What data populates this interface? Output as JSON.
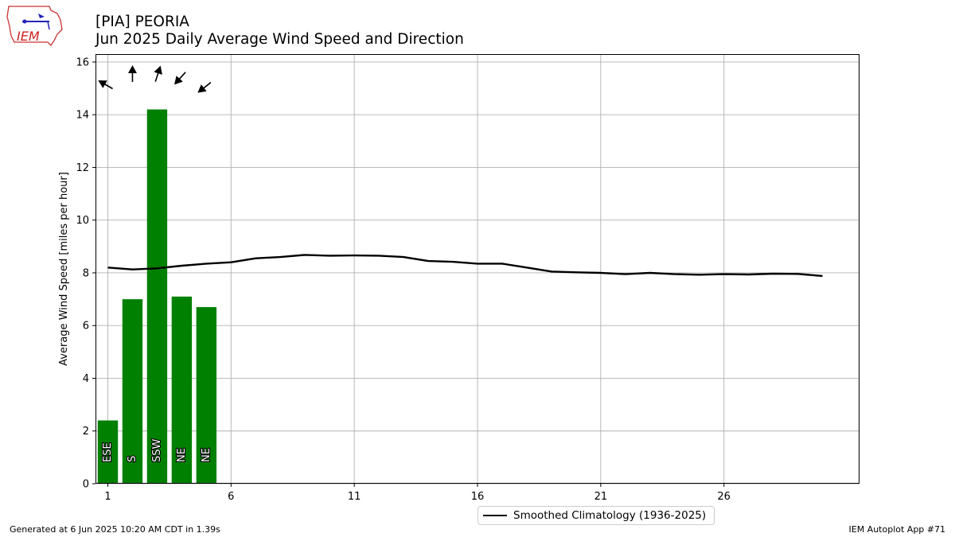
{
  "header": {
    "line1": "[PIA] PEORIA",
    "line2": "Jun 2025 Daily Average Wind Speed and Direction",
    "logo_text": "IEM"
  },
  "footer": {
    "left": "Generated at 6 Jun 2025 10:20 AM CDT in 1.39s",
    "right": "IEM Autoplot App #71"
  },
  "legend": {
    "label": "Smoothed Climatology (1936-2025)"
  },
  "chart_data": {
    "type": "bar",
    "ylabel": "Average Wind Speed [miles per hour]",
    "xlabel": "",
    "xlim": [
      0.5,
      31.5
    ],
    "ylim": [
      0,
      16.3
    ],
    "xticks": [
      1,
      6,
      11,
      16,
      21,
      26
    ],
    "yticks": [
      0,
      2,
      4,
      6,
      8,
      10,
      12,
      14,
      16
    ],
    "grid": true,
    "legend_position": "bottom-center",
    "bar_color": "#008000",
    "bars": [
      {
        "day": 1,
        "speed": 2.4,
        "direction": "ESE",
        "arrow_deg": 300
      },
      {
        "day": 2,
        "speed": 7.0,
        "direction": "S",
        "arrow_deg": 0
      },
      {
        "day": 3,
        "speed": 14.2,
        "direction": "SSW",
        "arrow_deg": 18
      },
      {
        "day": 4,
        "speed": 7.1,
        "direction": "NE",
        "arrow_deg": 222
      },
      {
        "day": 5,
        "speed": 6.7,
        "direction": "NE",
        "arrow_deg": 232
      }
    ],
    "series": [
      {
        "name": "Smoothed Climatology (1936-2025)",
        "color": "#000000",
        "x": [
          1,
          2,
          3,
          4,
          5,
          6,
          7,
          8,
          9,
          10,
          11,
          12,
          13,
          14,
          15,
          16,
          17,
          18,
          19,
          20,
          21,
          22,
          23,
          24,
          25,
          26,
          27,
          28,
          29,
          30
        ],
        "values": [
          8.2,
          8.13,
          8.17,
          8.27,
          8.35,
          8.4,
          8.55,
          8.6,
          8.68,
          8.65,
          8.66,
          8.65,
          8.6,
          8.45,
          8.42,
          8.35,
          8.35,
          8.2,
          8.05,
          8.02,
          8.0,
          7.95,
          8.0,
          7.95,
          7.93,
          7.95,
          7.94,
          7.97,
          7.96,
          7.88
        ]
      }
    ]
  }
}
